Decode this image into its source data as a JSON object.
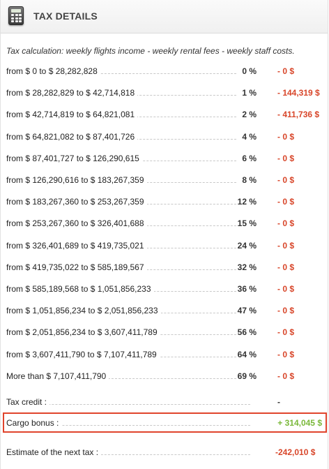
{
  "header": {
    "icon": "calculator-icon",
    "title": "TAX DETAILS"
  },
  "description": "Tax calculation: weekly flights income - weekly rental fees - weekly staff costs.",
  "brackets": [
    {
      "range": "from $ 0 to $ 28,282,828",
      "rate": "0 %",
      "amount": "- 0 $"
    },
    {
      "range": "from $ 28,282,829 to $ 42,714,818",
      "rate": "1 %",
      "amount": "- 144,319 $"
    },
    {
      "range": "from $ 42,714,819 to $ 64,821,081",
      "rate": "2 %",
      "amount": "- 411,736 $"
    },
    {
      "range": "from $ 64,821,082 to $ 87,401,726",
      "rate": "4 %",
      "amount": "- 0 $"
    },
    {
      "range": "from $ 87,401,727 to $ 126,290,615",
      "rate": "6 %",
      "amount": "- 0 $"
    },
    {
      "range": "from $ 126,290,616 to $ 183,267,359",
      "rate": "8 %",
      "amount": "- 0 $"
    },
    {
      "range": "from $ 183,267,360 to $ 253,267,359",
      "rate": "12 %",
      "amount": "- 0 $"
    },
    {
      "range": "from $ 253,267,360 to $ 326,401,688",
      "rate": "15 %",
      "amount": "- 0 $"
    },
    {
      "range": "from $ 326,401,689 to $ 419,735,021",
      "rate": "24 %",
      "amount": "- 0 $"
    },
    {
      "range": "from $ 419,735,022 to $ 585,189,567",
      "rate": "32 %",
      "amount": "- 0 $"
    },
    {
      "range": "from $ 585,189,568 to $ 1,051,856,233",
      "rate": "36 %",
      "amount": "- 0 $"
    },
    {
      "range": "from $ 1,051,856,234 to $ 2,051,856,233",
      "rate": "47 %",
      "amount": "- 0 $"
    },
    {
      "range": "from $ 2,051,856,234 to $ 3,607,411,789",
      "rate": "56 %",
      "amount": "- 0 $"
    },
    {
      "range": "from $ 3,607,411,790 to $ 7,107,411,789",
      "rate": "64 %",
      "amount": "- 0 $"
    },
    {
      "range": "More than $ 7,107,411,790",
      "rate": "69 %",
      "amount": "- 0 $"
    }
  ],
  "tax_credit": {
    "label": "Tax credit :",
    "value": "-"
  },
  "cargo_bonus": {
    "label": "Cargo bonus :",
    "value": "+ 314,045 $"
  },
  "next_tax": {
    "label": "Estimate of the next tax :",
    "value": "-242,010 $"
  },
  "colors": {
    "negative": "#d8462a",
    "positive": "#7ab83a",
    "highlight_border": "#e0442c"
  }
}
